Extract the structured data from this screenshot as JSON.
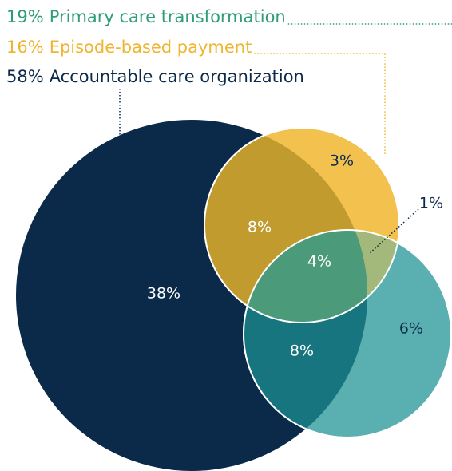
{
  "chart_data": {
    "type": "venn",
    "sets": {
      "names": [
        "Primary care transformation",
        "Episode-based payment",
        "Accountable care organization"
      ],
      "values": [
        19,
        16,
        58
      ],
      "value_labels": [
        "19%",
        "16%",
        "58%"
      ],
      "colors": [
        "#5aafb1",
        "#f2c14e",
        "#0b2a4a"
      ],
      "label_colors": [
        "#2f9e74",
        "#f0b530",
        "#0b2a4a"
      ]
    },
    "regions": {
      "values": [
        38,
        3,
        6,
        8,
        8,
        1,
        4
      ],
      "value_labels": [
        "38%",
        "3%",
        "6%",
        "8%",
        "8%",
        "1%",
        "4%"
      ],
      "colors": [
        "#0b2a4a",
        "#f2c14e",
        "#5aafb1",
        "#c19b2d",
        "#17757f",
        "#a3b97c",
        "#4b9b7b"
      ]
    }
  }
}
